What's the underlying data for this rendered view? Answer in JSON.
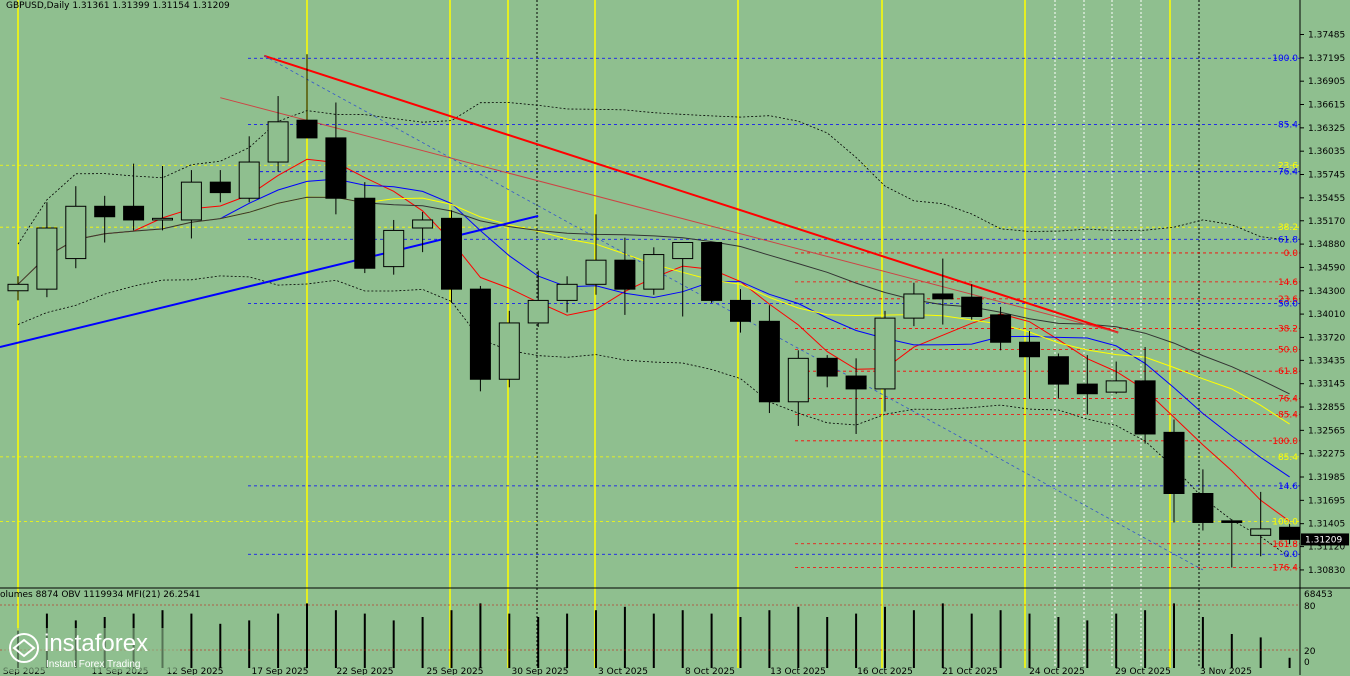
{
  "header": {
    "symbol": "GBPUSD,Daily",
    "ohlc": "1.31361 1.31399 1.31154 1.31209"
  },
  "volume_header": "olumes 8874  OBV 1119934  MFI(21) 26.2541",
  "logo": {
    "brand": "instaforex",
    "tagline": "Instant Forex Trading"
  },
  "colors": {
    "background": "#8FBF8F",
    "bull_candle": "#8FBF8F",
    "bear_candle": "#000000",
    "trend_red": "#FF0000",
    "trend_blue": "#0000FF",
    "session_line": "#FFFF00",
    "current_price_box": "#000000"
  },
  "chart_data": {
    "type": "candlestick",
    "price_axis": {
      "ylim": [
        1.3068,
        1.3774
      ],
      "ticks": [
        "1.37485",
        "1.37195",
        "1.36905",
        "1.36615",
        "1.36325",
        "1.36035",
        "1.35745",
        "1.35455",
        "1.35170",
        "1.34880",
        "1.34590",
        "1.34300",
        "1.34010",
        "1.33720",
        "1.33435",
        "1.33145",
        "1.32855",
        "1.32565",
        "1.32275",
        "1.31985",
        "1.31695",
        "1.31405",
        "1.31120",
        "1.30830"
      ],
      "current_price": "1.31209"
    },
    "date_labels": [
      "8 Sep 2025",
      "11 Sep 2025",
      "12 Sep 2025",
      "17 Sep 2025",
      "22 Sep 2025",
      "25 Sep 2025",
      "30 Sep 2025",
      "3 Oct 2025",
      "8 Oct 2025",
      "13 Oct 2025",
      "16 Oct 2025",
      "21 Oct 2025",
      "24 Oct 2025",
      "29 Oct 2025",
      "3 Nov 2025"
    ],
    "candles": [
      {
        "o": 1.343,
        "h": 1.3448,
        "l": 1.3418,
        "c": 1.3438
      },
      {
        "o": 1.3432,
        "h": 1.354,
        "l": 1.3422,
        "c": 1.3508
      },
      {
        "o": 1.347,
        "h": 1.356,
        "l": 1.3458,
        "c": 1.3535
      },
      {
        "o": 1.3535,
        "h": 1.3548,
        "l": 1.349,
        "c": 1.3522
      },
      {
        "o": 1.3535,
        "h": 1.3588,
        "l": 1.3505,
        "c": 1.3518
      },
      {
        "o": 1.3518,
        "h": 1.3585,
        "l": 1.3505,
        "c": 1.352
      },
      {
        "o": 1.3518,
        "h": 1.358,
        "l": 1.3495,
        "c": 1.3565
      },
      {
        "o": 1.3565,
        "h": 1.358,
        "l": 1.354,
        "c": 1.3552
      },
      {
        "o": 1.3545,
        "h": 1.3622,
        "l": 1.354,
        "c": 1.359
      },
      {
        "o": 1.359,
        "h": 1.3672,
        "l": 1.3578,
        "c": 1.364
      },
      {
        "o": 1.3642,
        "h": 1.3724,
        "l": 1.362,
        "c": 1.362
      },
      {
        "o": 1.362,
        "h": 1.3664,
        "l": 1.3525,
        "c": 1.3545
      },
      {
        "o": 1.3545,
        "h": 1.3565,
        "l": 1.3452,
        "c": 1.3458
      },
      {
        "o": 1.346,
        "h": 1.3518,
        "l": 1.345,
        "c": 1.3505
      },
      {
        "o": 1.3508,
        "h": 1.3528,
        "l": 1.3478,
        "c": 1.3518
      },
      {
        "o": 1.352,
        "h": 1.353,
        "l": 1.3415,
        "c": 1.3432
      },
      {
        "o": 1.3432,
        "h": 1.3436,
        "l": 1.3305,
        "c": 1.332
      },
      {
        "o": 1.332,
        "h": 1.3405,
        "l": 1.331,
        "c": 1.339
      },
      {
        "o": 1.339,
        "h": 1.3455,
        "l": 1.3385,
        "c": 1.3418
      },
      {
        "o": 1.3418,
        "h": 1.3448,
        "l": 1.3403,
        "c": 1.3438
      },
      {
        "o": 1.3438,
        "h": 1.3525,
        "l": 1.3425,
        "c": 1.3468
      },
      {
        "o": 1.3468,
        "h": 1.3496,
        "l": 1.34,
        "c": 1.3432
      },
      {
        "o": 1.3432,
        "h": 1.3484,
        "l": 1.3425,
        "c": 1.3475
      },
      {
        "o": 1.347,
        "h": 1.3485,
        "l": 1.3398,
        "c": 1.349
      },
      {
        "o": 1.349,
        "h": 1.3487,
        "l": 1.3415,
        "c": 1.3418
      },
      {
        "o": 1.3418,
        "h": 1.3432,
        "l": 1.3378,
        "c": 1.3392
      },
      {
        "o": 1.3392,
        "h": 1.3412,
        "l": 1.3278,
        "c": 1.3292
      },
      {
        "o": 1.3292,
        "h": 1.3356,
        "l": 1.3262,
        "c": 1.3346
      },
      {
        "o": 1.3346,
        "h": 1.335,
        "l": 1.331,
        "c": 1.3324
      },
      {
        "o": 1.3324,
        "h": 1.3346,
        "l": 1.3252,
        "c": 1.3308
      },
      {
        "o": 1.3308,
        "h": 1.3405,
        "l": 1.328,
        "c": 1.3396
      },
      {
        "o": 1.3396,
        "h": 1.344,
        "l": 1.3386,
        "c": 1.3426
      },
      {
        "o": 1.3426,
        "h": 1.347,
        "l": 1.3388,
        "c": 1.342
      },
      {
        "o": 1.3422,
        "h": 1.3438,
        "l": 1.3394,
        "c": 1.3398
      },
      {
        "o": 1.34,
        "h": 1.341,
        "l": 1.3356,
        "c": 1.3366
      },
      {
        "o": 1.3366,
        "h": 1.338,
        "l": 1.3296,
        "c": 1.3348
      },
      {
        "o": 1.3348,
        "h": 1.3352,
        "l": 1.3296,
        "c": 1.3314
      },
      {
        "o": 1.3314,
        "h": 1.335,
        "l": 1.3276,
        "c": 1.3302
      },
      {
        "o": 1.3304,
        "h": 1.3342,
        "l": 1.3302,
        "c": 1.3318
      },
      {
        "o": 1.3318,
        "h": 1.336,
        "l": 1.324,
        "c": 1.3252
      },
      {
        "o": 1.3254,
        "h": 1.327,
        "l": 1.3142,
        "c": 1.3178
      },
      {
        "o": 1.3178,
        "h": 1.3208,
        "l": 1.3132,
        "c": 1.3142
      },
      {
        "o": 1.3144,
        "h": 1.3146,
        "l": 1.3086,
        "c": 1.3142
      },
      {
        "o": 1.3126,
        "h": 1.318,
        "l": 1.31,
        "c": 1.3134
      },
      {
        "o": 1.3136,
        "h": 1.314,
        "l": 1.3115,
        "c": 1.3121
      }
    ],
    "fib_labels": [
      {
        "text": "100.0",
        "price": 1.3719,
        "color": "#0000FF"
      },
      {
        "text": "85.4",
        "price": 1.36365,
        "color": "#0000FF"
      },
      {
        "text": "23.6",
        "price": 1.3586,
        "color": "#FFFF00"
      },
      {
        "text": "76.4",
        "price": 1.3578,
        "color": "#0000FF"
      },
      {
        "text": "38.2",
        "price": 1.3509,
        "color": "#FFFF00"
      },
      {
        "text": "61.8",
        "price": 1.3494,
        "color": "#0000FF"
      },
      {
        "text": "0.0",
        "price": 1.3477,
        "color": "#FF0000"
      },
      {
        "text": "14.6",
        "price": 1.3441,
        "color": "#FF0000"
      },
      {
        "text": "23.6",
        "price": 1.342,
        "color": "#FF0000"
      },
      {
        "text": "50.0",
        "price": 1.3414,
        "color": "#0000FF"
      },
      {
        "text": "38.2",
        "price": 1.3383,
        "color": "#FF0000"
      },
      {
        "text": "50.0",
        "price": 1.3357,
        "color": "#FF0000"
      },
      {
        "text": "61.8",
        "price": 1.333,
        "color": "#FF0000"
      },
      {
        "text": "76.4",
        "price": 1.3296,
        "color": "#FF0000"
      },
      {
        "text": "85.4",
        "price": 1.3276,
        "color": "#FF0000"
      },
      {
        "text": "100.0",
        "price": 1.32435,
        "color": "#FF0000"
      },
      {
        "text": "85.4",
        "price": 1.32235,
        "color": "#FFFF00"
      },
      {
        "text": "14.6",
        "price": 1.31875,
        "color": "#0000FF"
      },
      {
        "text": "100.0",
        "price": 1.3143,
        "color": "#FFFF00"
      },
      {
        "text": "161.8",
        "price": 1.31155,
        "color": "#FF0000"
      },
      {
        "text": "0.0",
        "price": 1.31025,
        "color": "#0000FF"
      },
      {
        "text": "176.4",
        "price": 1.3086,
        "color": "#FF0000"
      }
    ],
    "volume_axis": {
      "ticks": [
        "68453",
        "80",
        "20",
        "0"
      ]
    },
    "volumes": [
      0.55,
      0.8,
      0.7,
      0.75,
      0.8,
      0.85,
      0.8,
      0.65,
      0.7,
      0.8,
      0.95,
      0.85,
      0.8,
      0.7,
      0.75,
      0.85,
      0.95,
      0.8,
      0.75,
      0.8,
      0.85,
      0.9,
      0.8,
      0.85,
      0.8,
      0.75,
      0.85,
      0.9,
      0.75,
      0.8,
      0.9,
      0.85,
      0.95,
      0.8,
      0.85,
      0.8,
      0.75,
      0.7,
      0.8,
      0.85,
      0.95,
      0.75,
      0.5,
      0.45,
      0.15
    ]
  }
}
